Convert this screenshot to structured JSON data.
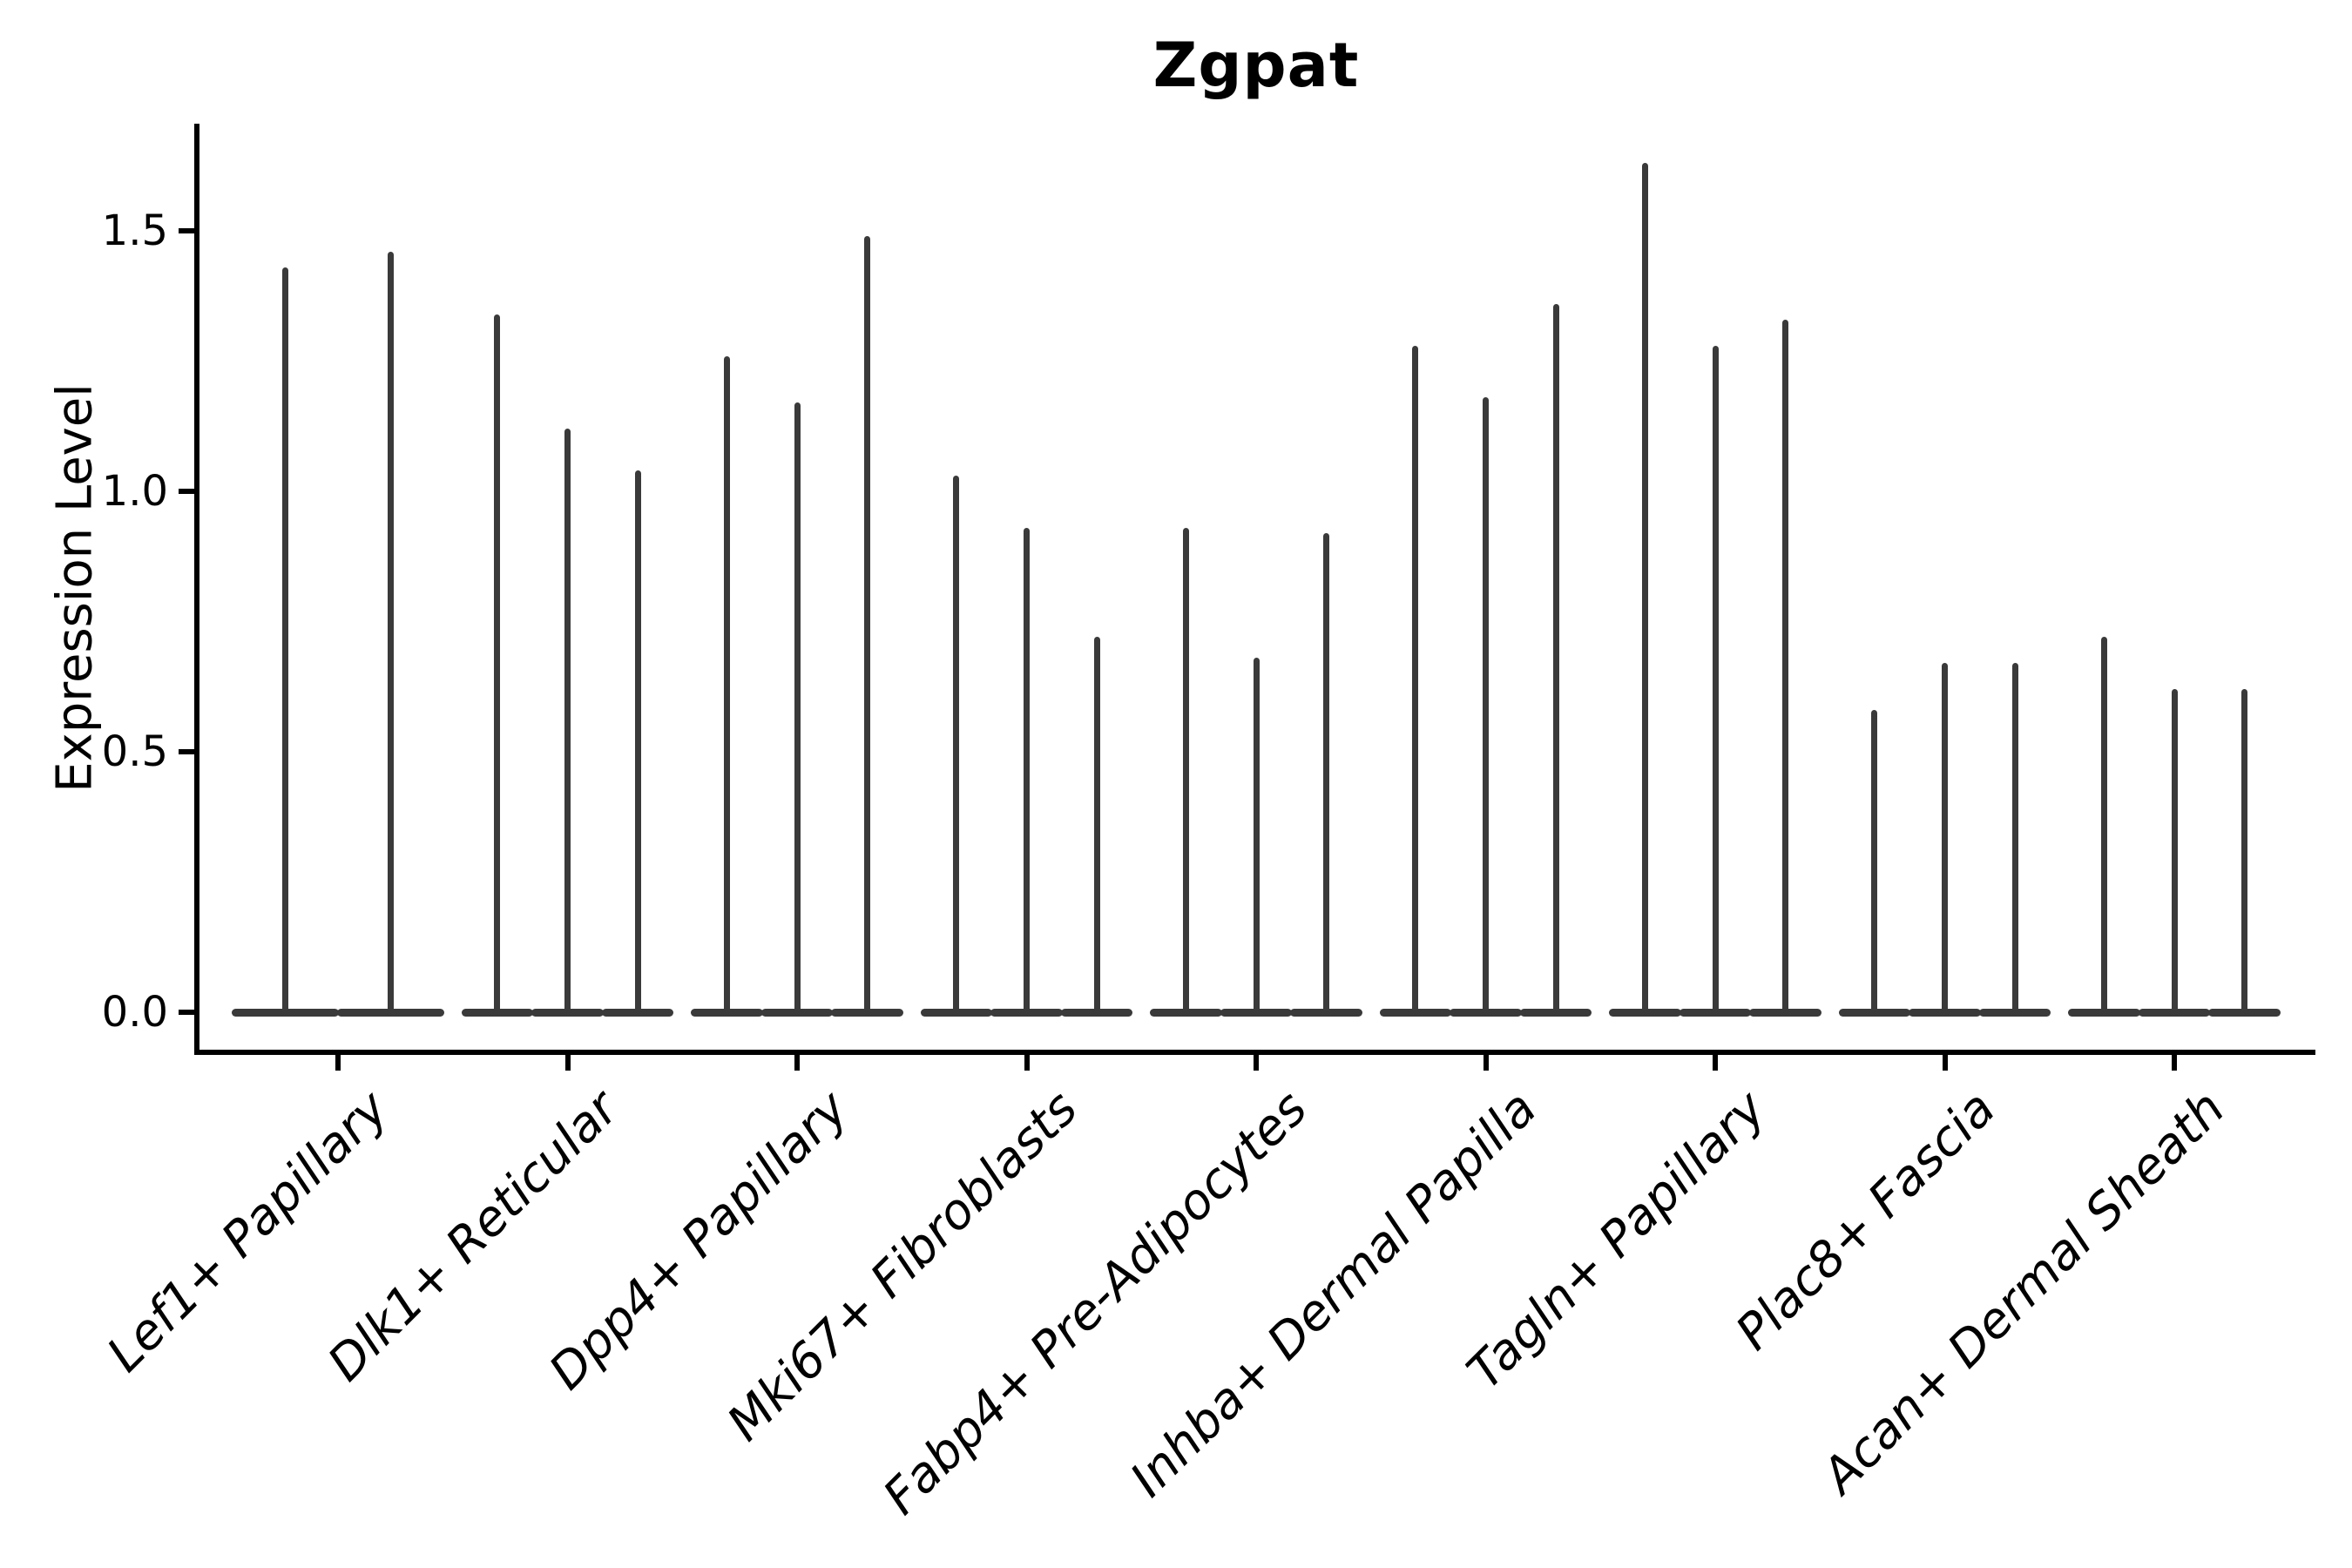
{
  "figure": {
    "title": "Zgpat"
  },
  "axes": {
    "y_label": "Expression Level",
    "y_tick_labels": [
      "0.0",
      "0.5",
      "1.0",
      "1.5"
    ],
    "x_tick_rotation_deg": 45
  },
  "style": {
    "background": "#ffffff",
    "violin_color": "#3a3a3a",
    "axis_color": "#000000",
    "text_color": "#000000"
  },
  "chart_data": {
    "type": "violin",
    "title": "Zgpat",
    "xlabel": "",
    "ylabel": "Expression Level",
    "ylim": [
      -0.08,
      1.71
    ],
    "yticks": [
      0.0,
      0.5,
      1.0,
      1.5
    ],
    "grid": false,
    "legend": false,
    "description": "Violin expression plot; each category holds 2-3 very narrow violins: a wide flat density bulge at 0 and a thin tail rising to the maximum expression value.",
    "categories": [
      {
        "label": "Lef1+ Papillary",
        "violin_tail_max": [
          1.43,
          1.46
        ]
      },
      {
        "label": "Dlk1+ Reticular",
        "violin_tail_max": [
          1.34,
          1.12,
          1.04
        ]
      },
      {
        "label": "Dpp4+ Papillary",
        "violin_tail_max": [
          1.26,
          1.17,
          1.49
        ]
      },
      {
        "label": "Mki67+ Fibroblasts",
        "violin_tail_max": [
          1.03,
          0.93,
          0.72
        ]
      },
      {
        "label": "Fabp4+ Pre-Adipocytes",
        "violin_tail_max": [
          0.93,
          0.68,
          0.92
        ]
      },
      {
        "label": "Inhba+ Dermal Papilla",
        "violin_tail_max": [
          1.28,
          1.18,
          1.36
        ]
      },
      {
        "label": "Tagln+ Papillary",
        "violin_tail_max": [
          1.63,
          1.28,
          1.33
        ]
      },
      {
        "label": "Plac8+ Fascia",
        "violin_tail_max": [
          0.58,
          0.67,
          0.67
        ]
      },
      {
        "label": "Acan+ Dermal Sheath",
        "violin_tail_max": [
          0.72,
          0.62,
          0.62
        ]
      }
    ]
  }
}
